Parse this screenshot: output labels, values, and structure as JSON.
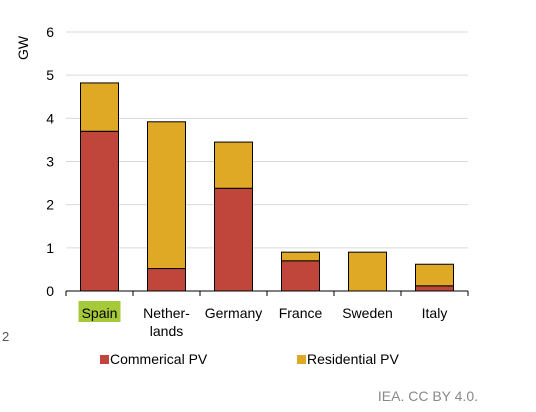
{
  "chart_data": {
    "type": "bar",
    "stacked": true,
    "ylabel": "GW",
    "ylim": [
      0,
      6
    ],
    "yticks": [
      "0",
      "1",
      "2",
      "3",
      "4",
      "5",
      "6"
    ],
    "categories": [
      [
        "Spain"
      ],
      [
        "Nether-",
        "lands"
      ],
      [
        "Germany"
      ],
      [
        "France"
      ],
      [
        "Sweden"
      ],
      [
        "Italy"
      ]
    ],
    "highlighted_category_index": 0,
    "highlight_color": "#a6c93a",
    "series": [
      {
        "name": "Commerical PV",
        "color": "#c0463c",
        "values": [
          3.7,
          0.52,
          2.38,
          0.7,
          0.0,
          0.12
        ]
      },
      {
        "name": "Residential PV",
        "color": "#e0a925",
        "values": [
          1.12,
          3.4,
          1.07,
          0.2,
          0.9,
          0.5
        ]
      }
    ],
    "grid": true,
    "legend_position": "bottom"
  },
  "credit": "IEA. CC BY 4.0.",
  "stray_text": "2"
}
